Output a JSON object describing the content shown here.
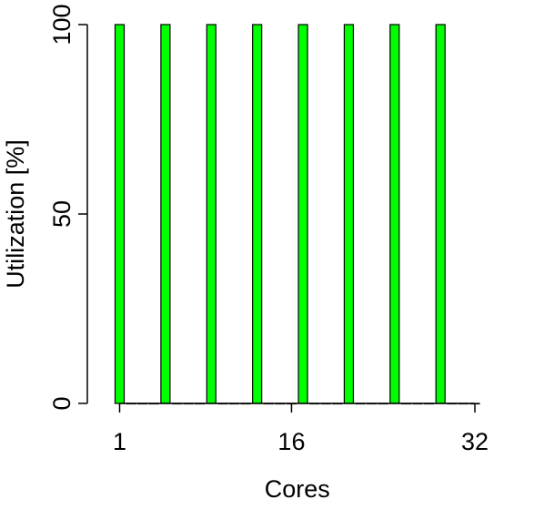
{
  "chart_data": {
    "type": "bar",
    "xlabel": "Cores",
    "ylabel": "Utilization [%]",
    "x_ticks": [
      1,
      16,
      32
    ],
    "x_tick_labels": [
      "1",
      "16",
      "32"
    ],
    "y_ticks": [
      0,
      50,
      100
    ],
    "y_tick_labels": [
      "0",
      "50",
      "100"
    ],
    "xlim": [
      1,
      32
    ],
    "ylim": [
      0,
      100
    ],
    "grid": false,
    "legend": "none",
    "bar_color": "#00ff00",
    "x": [
      1,
      2,
      3,
      4,
      5,
      6,
      7,
      8,
      9,
      10,
      11,
      12,
      13,
      14,
      15,
      16,
      17,
      18,
      19,
      20,
      21,
      22,
      23,
      24,
      25,
      26,
      27,
      28,
      29,
      30,
      31,
      32
    ],
    "values": [
      100,
      0,
      0,
      0,
      100,
      0,
      0,
      0,
      100,
      0,
      0,
      0,
      100,
      0,
      0,
      0,
      100,
      0,
      0,
      0,
      100,
      0,
      0,
      0,
      100,
      0,
      0,
      0,
      100,
      0,
      0,
      0
    ]
  }
}
